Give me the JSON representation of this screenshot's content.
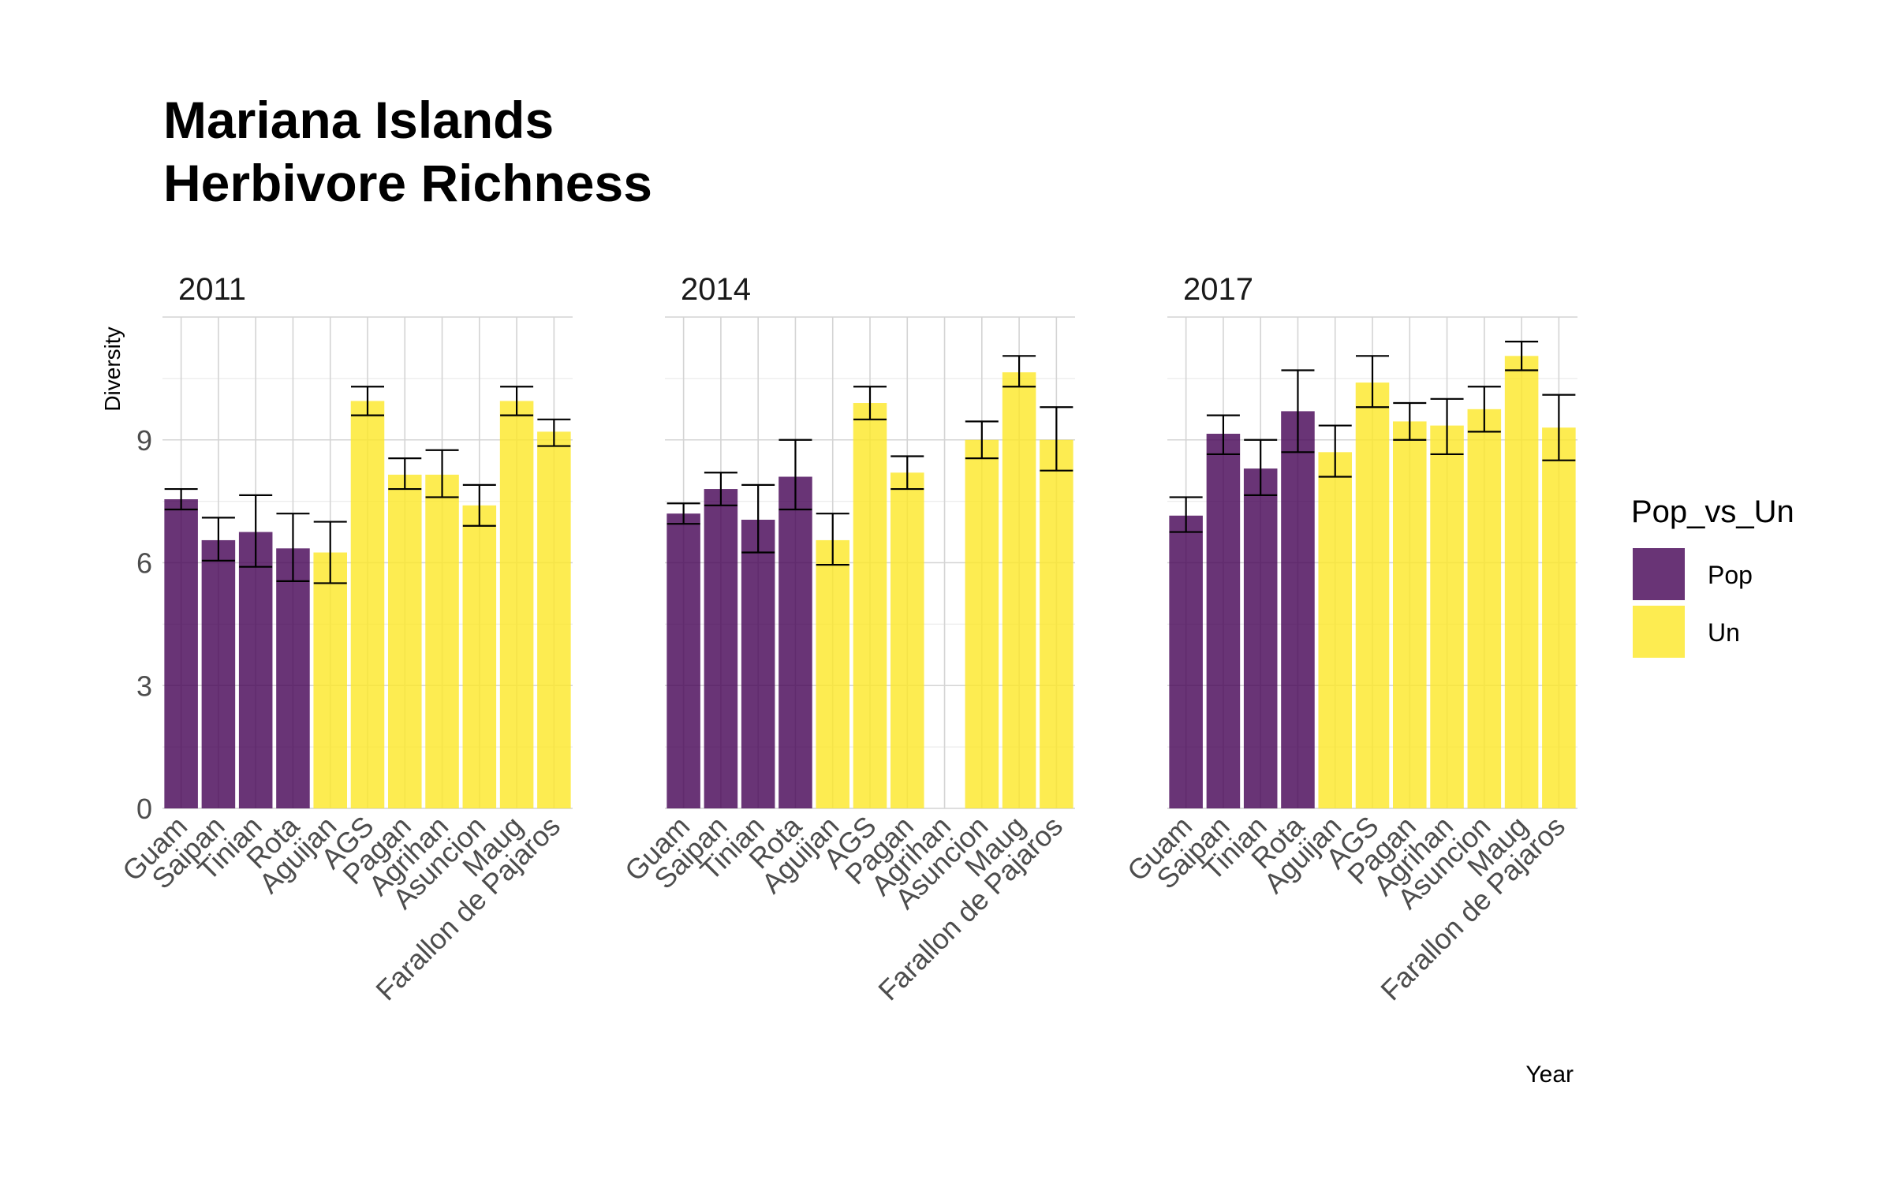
{
  "chart_data": {
    "type": "bar",
    "title": [
      "Mariana Islands",
      "Herbivore Richness"
    ],
    "xlabel": "Year",
    "ylabel": "Diversity",
    "ylim": [
      0,
      12
    ],
    "yticks": [
      0,
      3,
      6,
      9
    ],
    "grid": true,
    "legend": {
      "title": "Pop_vs_Un",
      "position": "right",
      "entries": [
        {
          "label": "Pop",
          "color": "#440154"
        },
        {
          "label": "Un",
          "color": "#FDE725"
        }
      ]
    },
    "categories": [
      "Guam",
      "Saipan",
      "Tinian",
      "Rota",
      "Aguijan",
      "AGS",
      "Pagan",
      "Agrihan",
      "Asuncion",
      "Maug",
      "Farallon de Pajaros"
    ],
    "groups": [
      "Pop",
      "Pop",
      "Pop",
      "Pop",
      "Un",
      "Un",
      "Un",
      "Un",
      "Un",
      "Un",
      "Un"
    ],
    "panels": [
      {
        "label": "2011",
        "values": [
          7.55,
          6.55,
          6.75,
          6.35,
          6.25,
          9.95,
          8.15,
          8.15,
          7.4,
          9.95,
          9.2
        ],
        "err_low": [
          7.3,
          6.05,
          5.9,
          5.55,
          5.5,
          9.6,
          7.8,
          7.6,
          6.9,
          9.6,
          8.85
        ],
        "err_high": [
          7.8,
          7.1,
          7.65,
          7.2,
          7.0,
          10.3,
          8.55,
          8.75,
          7.9,
          10.3,
          9.5
        ]
      },
      {
        "label": "2014",
        "values": [
          7.2,
          7.8,
          7.05,
          8.1,
          6.55,
          9.9,
          8.2,
          null,
          9.0,
          10.65,
          9.0
        ],
        "err_low": [
          6.95,
          7.4,
          6.25,
          7.3,
          5.95,
          9.5,
          7.8,
          null,
          8.55,
          10.3,
          8.25
        ],
        "err_high": [
          7.45,
          8.2,
          7.9,
          9.0,
          7.2,
          10.3,
          8.6,
          null,
          9.45,
          11.05,
          9.8
        ]
      },
      {
        "label": "2017",
        "values": [
          7.15,
          9.15,
          8.3,
          9.7,
          8.7,
          10.4,
          9.45,
          9.35,
          9.75,
          11.05,
          9.3
        ],
        "err_low": [
          6.75,
          8.65,
          7.65,
          8.7,
          8.1,
          9.8,
          9.0,
          8.65,
          9.2,
          10.7,
          8.5
        ],
        "err_high": [
          7.6,
          9.6,
          9.0,
          10.7,
          9.35,
          11.05,
          9.9,
          10.0,
          10.3,
          11.4,
          10.1
        ]
      }
    ]
  }
}
